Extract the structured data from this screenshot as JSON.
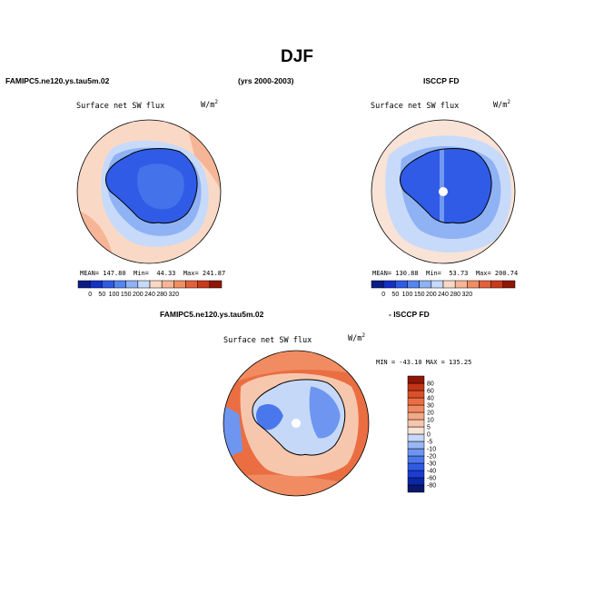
{
  "page": {
    "title": "DJF",
    "left_model": "FAMIPC5.ne120.ys.tau5m.02",
    "years": "(yrs 2000-2003)",
    "right_model": "ISCCP FD",
    "diff_model": "FAMIPC5.ne120.ys.tau5m.02",
    "diff_ref": "- ISCCP FD"
  },
  "panels": {
    "model": {
      "subtitle": "Surface net SW flux",
      "units": "W/m",
      "units_sup": "2",
      "mean_label": "MEAN=",
      "mean": "147.80",
      "min_label": "Min=",
      "min": "44.33",
      "max_label": "Max=",
      "max": "241.87"
    },
    "obs": {
      "subtitle": "Surface net SW flux",
      "units": "W/m",
      "units_sup": "2",
      "mean_label": "MEAN=",
      "mean": "130.88",
      "min_label": "Min=",
      "min": "53.73",
      "max_label": "Max=",
      "max": "200.74"
    },
    "diff": {
      "subtitle": "Surface net SW flux",
      "units": "W/m",
      "units_sup": "2",
      "minmax": "MIN = -43.10  MAX = 135.25"
    }
  },
  "chart_data": [
    {
      "type": "heatmap",
      "projection": "south polar stereographic",
      "title": "Surface net SW flux",
      "units": "W/m2",
      "stats": {
        "mean": 147.8,
        "min": 44.33,
        "max": 241.87
      },
      "colorbar": {
        "orientation": "horizontal",
        "levels": [
          0,
          50,
          100,
          150,
          200,
          240,
          280,
          320
        ],
        "tick_labels": [
          "0",
          "50",
          "100",
          "150",
          "200",
          "240",
          "280",
          "320"
        ],
        "colors": [
          "#0a1c86",
          "#1530c4",
          "#2f5be6",
          "#5585ee",
          "#8fb2f4",
          "#c7daf9",
          "#f9d9c6",
          "#f6b596",
          "#f08e63",
          "#e2603a",
          "#c93a1c",
          "#8f1606"
        ]
      }
    },
    {
      "type": "heatmap",
      "projection": "south polar stereographic",
      "title": "Surface net SW flux",
      "units": "W/m2",
      "stats": {
        "mean": 130.88,
        "min": 53.73,
        "max": 200.74
      },
      "colorbar": {
        "orientation": "horizontal",
        "levels": [
          0,
          50,
          100,
          150,
          200,
          240,
          280,
          320
        ],
        "tick_labels": [
          "0",
          "50",
          "100",
          "150",
          "200",
          "240",
          "280",
          "320"
        ],
        "colors": [
          "#0a1c86",
          "#1530c4",
          "#2f5be6",
          "#5585ee",
          "#8fb2f4",
          "#c7daf9",
          "#f9d9c6",
          "#f6b596",
          "#f08e63",
          "#e2603a",
          "#c93a1c",
          "#8f1606"
        ]
      }
    },
    {
      "type": "heatmap",
      "projection": "south polar stereographic",
      "title": "Surface net SW flux",
      "units": "W/m2",
      "stats": {
        "min": -43.1,
        "max": 135.25
      },
      "colorbar": {
        "orientation": "vertical",
        "levels": [
          -80,
          -60,
          -40,
          -30,
          -20,
          -10,
          -5,
          0,
          5,
          10,
          20,
          30,
          40,
          60,
          80
        ],
        "tick_labels": [
          "-80",
          "-60",
          "-40",
          "-30",
          "-20",
          "-10",
          "-5",
          "0",
          "5",
          "10",
          "20",
          "30",
          "40",
          "60",
          "80"
        ],
        "colors": [
          "#08186e",
          "#0c26a8",
          "#1a3cd2",
          "#2f5be6",
          "#4a78ec",
          "#6e96f0",
          "#9ab6f4",
          "#c6d8f8",
          "#f9e3d6",
          "#f7c7ad",
          "#f5a986",
          "#f18c62",
          "#ea6e42",
          "#dc5028",
          "#c43416",
          "#8f1606"
        ]
      }
    }
  ]
}
